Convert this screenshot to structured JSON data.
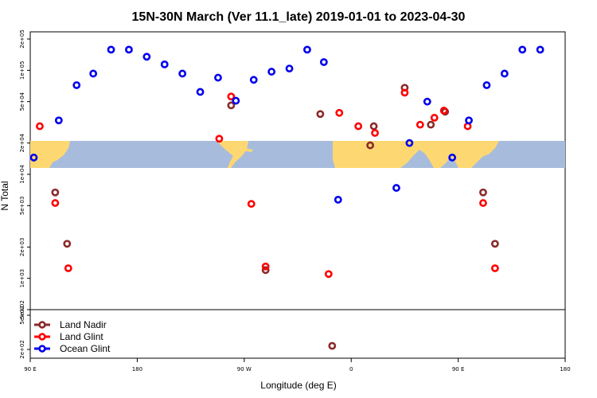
{
  "chart_data": {
    "type": "scatter",
    "title": "15N-30N March (Ver 11.1_late)   2019-01-01 to 2023-04-30",
    "xlabel": "Longitude (deg E)",
    "ylabel": "N Total",
    "x_ticks": [
      {
        "value": 90,
        "label": "90 E"
      },
      {
        "value": 180,
        "label": "180"
      },
      {
        "value": 270,
        "label": "90 W"
      },
      {
        "value": 360,
        "label": "0"
      },
      {
        "value": 450,
        "label": "90 E"
      },
      {
        "value": 540,
        "label": "180"
      }
    ],
    "xlim": [
      90,
      540
    ],
    "y_scale": "log",
    "y_ticks_upper": [
      {
        "value": 200000,
        "label": "2e+05"
      },
      {
        "value": 100000,
        "label": "1e+05"
      },
      {
        "value": 50000,
        "label": "5e+04"
      },
      {
        "value": 20000,
        "label": "2e+04"
      },
      {
        "value": 10000,
        "label": "1e+04"
      },
      {
        "value": 5000,
        "label": "5e+03"
      },
      {
        "value": 2000,
        "label": "2e+03"
      },
      {
        "value": 1000,
        "label": "1e+03"
      },
      {
        "value": 500,
        "label": "5e+02"
      }
    ],
    "y_ticks_lower": [
      {
        "value": 500,
        "label": "5e+02"
      },
      {
        "value": 200,
        "label": "2e+02"
      }
    ],
    "legend_position": "bottom-left",
    "series": [
      {
        "name": "Land Nadir",
        "color": "#8b2a2a",
        "points": [
          [
            111,
            6700
          ],
          [
            121,
            2150
          ],
          [
            259,
            46000
          ],
          [
            288,
            1200
          ],
          [
            334,
            38000
          ],
          [
            344,
            220
          ],
          [
            379,
            29000
          ],
          [
            376,
            19000
          ],
          [
            405,
            68000
          ],
          [
            427,
            30000
          ],
          [
            439,
            40000
          ],
          [
            471,
            6700
          ],
          [
            481,
            2150
          ]
        ]
      },
      {
        "name": "Land Glint",
        "color": "#ff0000",
        "points": [
          [
            98,
            29000
          ],
          [
            111,
            5300
          ],
          [
            122,
            1250
          ],
          [
            249,
            22000
          ],
          [
            259,
            56000
          ],
          [
            276,
            5200
          ],
          [
            288,
            1300
          ],
          [
            341,
            1100
          ],
          [
            350,
            39000
          ],
          [
            366,
            29000
          ],
          [
            380,
            25000
          ],
          [
            405,
            61000
          ],
          [
            418,
            30000
          ],
          [
            430,
            35000
          ],
          [
            438,
            41000
          ],
          [
            458,
            29000
          ],
          [
            471,
            5300
          ],
          [
            481,
            1250
          ]
        ]
      },
      {
        "name": "Ocean Glint",
        "color": "#0000ee",
        "points": [
          [
            93,
            14500
          ],
          [
            114,
            33000
          ],
          [
            129,
            72000
          ],
          [
            143,
            93000
          ],
          [
            158,
            158000
          ],
          [
            173,
            158000
          ],
          [
            188,
            135000
          ],
          [
            203,
            114000
          ],
          [
            218,
            93000
          ],
          [
            233,
            62000
          ],
          [
            248,
            85000
          ],
          [
            263,
            51000
          ],
          [
            278,
            81000
          ],
          [
            293,
            97000
          ],
          [
            308,
            104000
          ],
          [
            323,
            158000
          ],
          [
            337,
            120000
          ],
          [
            349,
            5700
          ],
          [
            398,
            7400
          ],
          [
            409,
            20000
          ],
          [
            424,
            50000
          ],
          [
            445,
            14500
          ],
          [
            459,
            33000
          ],
          [
            474,
            72000
          ],
          [
            489,
            93000
          ],
          [
            504,
            158000
          ],
          [
            519,
            158000
          ]
        ]
      }
    ]
  }
}
